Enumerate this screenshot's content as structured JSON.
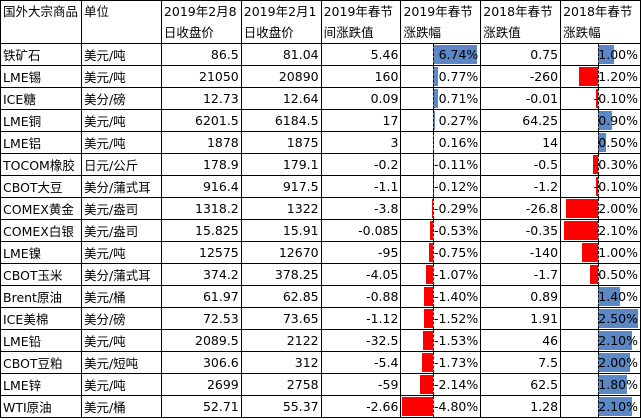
{
  "headers": [
    "国外大宗商品",
    "单位",
    "2019年2月8日收盘价",
    "2019年2月1日收盘价",
    "2019年春节间涨跌值",
    "2019年春节涨跌幅",
    "2018年春节涨跌值",
    "2018年春节涨跌幅"
  ],
  "colors": {
    "positive_bar": "#5b87c5",
    "negative_bar": "#ff0000"
  },
  "rows": [
    {
      "name": "铁矿石",
      "unit": "美元/吨",
      "p1": "86.5",
      "p2": "81.04",
      "chg19": "5.46",
      "pct19": 6.74,
      "pct19_text": "6.74%",
      "chg18": "0.75",
      "pct18": 1.0,
      "pct18_text": "1.00%"
    },
    {
      "name": "LME锡",
      "unit": "美元/吨",
      "p1": "21050",
      "p2": "20890",
      "chg19": "160",
      "pct19": 0.77,
      "pct19_text": "0.77%",
      "chg18": "-260",
      "pct18": -1.2,
      "pct18_text": "-1.20%"
    },
    {
      "name": "ICE糖",
      "unit": "美分/磅",
      "p1": "12.73",
      "p2": "12.64",
      "chg19": "0.09",
      "pct19": 0.71,
      "pct19_text": "0.71%",
      "chg18": "-0.01",
      "pct18": -0.1,
      "pct18_text": "-0.10%"
    },
    {
      "name": "LME铜",
      "unit": "美元/吨",
      "p1": "6201.5",
      "p2": "6184.5",
      "chg19": "17",
      "pct19": 0.27,
      "pct19_text": "0.27%",
      "chg18": "64.25",
      "pct18": 0.9,
      "pct18_text": "0.90%"
    },
    {
      "name": "LME铝",
      "unit": "美元/吨",
      "p1": "1878",
      "p2": "1875",
      "chg19": "3",
      "pct19": 0.16,
      "pct19_text": "0.16%",
      "chg18": "14",
      "pct18": 0.5,
      "pct18_text": "0.50%"
    },
    {
      "name": "TOCOM橡胶",
      "unit": "日元/公斤",
      "p1": "178.9",
      "p2": "179.1",
      "chg19": "-0.2",
      "pct19": -0.11,
      "pct19_text": "-0.11%",
      "chg18": "-0.5",
      "pct18": -0.3,
      "pct18_text": "-0.30%"
    },
    {
      "name": "CBOT大豆",
      "unit": "美分/蒲式耳",
      "p1": "916.4",
      "p2": "917.5",
      "chg19": "-1.1",
      "pct19": -0.12,
      "pct19_text": "-0.12%",
      "chg18": "-1.2",
      "pct18": -0.1,
      "pct18_text": "-0.10%"
    },
    {
      "name": "COMEX黄金",
      "unit": "美元/盎司",
      "p1": "1318.2",
      "p2": "1322",
      "chg19": "-3.8",
      "pct19": -0.29,
      "pct19_text": "-0.29%",
      "chg18": "-26.8",
      "pct18": -2.0,
      "pct18_text": "-2.00%"
    },
    {
      "name": "COMEX白银",
      "unit": "美元/盎司",
      "p1": "15.825",
      "p2": "15.91",
      "chg19": "-0.085",
      "pct19": -0.53,
      "pct19_text": "-0.53%",
      "chg18": "-0.35",
      "pct18": -2.1,
      "pct18_text": "-2.10%"
    },
    {
      "name": "LME镍",
      "unit": "美元/吨",
      "p1": "12575",
      "p2": "12670",
      "chg19": "-95",
      "pct19": -0.75,
      "pct19_text": "-0.75%",
      "chg18": "-140",
      "pct18": -1.0,
      "pct18_text": "-1.00%"
    },
    {
      "name": "CBOT玉米",
      "unit": "美分/蒲式耳",
      "p1": "374.2",
      "p2": "378.25",
      "chg19": "-4.05",
      "pct19": -1.07,
      "pct19_text": "-1.07%",
      "chg18": "-1.7",
      "pct18": -0.5,
      "pct18_text": "-0.50%"
    },
    {
      "name": "Brent原油",
      "unit": "美元/桶",
      "p1": "61.97",
      "p2": "62.85",
      "chg19": "-0.88",
      "pct19": -1.4,
      "pct19_text": "-1.40%",
      "chg18": "0.89",
      "pct18": 1.4,
      "pct18_text": "1.40%"
    },
    {
      "name": "ICE美棉",
      "unit": "美分/磅",
      "p1": "72.53",
      "p2": "73.65",
      "chg19": "-1.12",
      "pct19": -1.52,
      "pct19_text": "-1.52%",
      "chg18": "1.91",
      "pct18": 2.5,
      "pct18_text": "2.50%"
    },
    {
      "name": "LME铅",
      "unit": "美元/吨",
      "p1": "2089.5",
      "p2": "2122",
      "chg19": "-32.5",
      "pct19": -1.53,
      "pct19_text": "-1.53%",
      "chg18": "46",
      "pct18": 2.1,
      "pct18_text": "2.10%"
    },
    {
      "name": "CBOT豆粕",
      "unit": "美元/短吨",
      "p1": "306.6",
      "p2": "312",
      "chg19": "-5.4",
      "pct19": -1.73,
      "pct19_text": "-1.73%",
      "chg18": "7.5",
      "pct18": 2.0,
      "pct18_text": "2.00%"
    },
    {
      "name": "LME锌",
      "unit": "美元/吨",
      "p1": "2699",
      "p2": "2758",
      "chg19": "-59",
      "pct19": -2.14,
      "pct19_text": "-2.14%",
      "chg18": "62.5",
      "pct18": 1.8,
      "pct18_text": "1.80%"
    },
    {
      "name": "WTI原油",
      "unit": "美元/桶",
      "p1": "52.71",
      "p2": "55.37",
      "chg19": "-2.66",
      "pct19": -4.8,
      "pct19_text": "-4.80%",
      "chg18": "1.28",
      "pct18": 2.1,
      "pct18_text": "2.10%"
    }
  ]
}
